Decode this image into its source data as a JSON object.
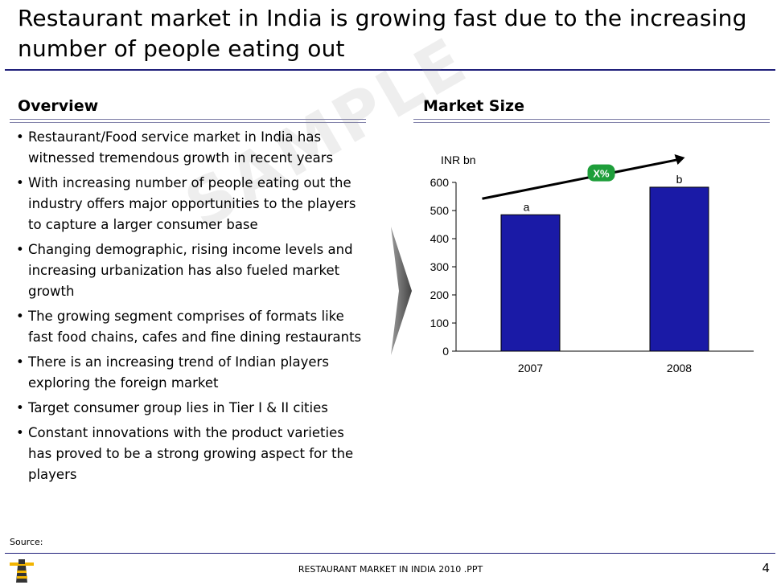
{
  "slide": {
    "title": "Restaurant market in India is growing fast due to the increasing number of people eating out",
    "overview_heading": "Overview",
    "market_heading": "Market Size",
    "bullets": [
      "Restaurant/Food service market in India has witnessed tremendous growth in recent years",
      "With increasing number of people eating out the industry offers major opportunities to the players to capture a larger consumer base",
      "Changing demographic, rising income levels and increasing urbanization has also fueled market growth",
      "The growing segment comprises of formats like fast food chains, cafes and fine dining restaurants",
      "There is an increasing trend of Indian players exploring the foreign market",
      "Target consumer group lies in Tier I & II cities",
      "Constant innovations with the product varieties has proved to be a strong growing aspect for the players"
    ],
    "bullet_symbol": "•",
    "watermark": "SAMPLE",
    "source": "Source:",
    "footer": "RESTAURANT MARKET IN INDIA 2010 .PPT",
    "page_number": "4"
  },
  "colors": {
    "bar_fill": "#1a1aa6",
    "growth_badge": "#1e9e3a",
    "rule": "#1f1f7a"
  },
  "chart_data": {
    "type": "bar",
    "categories": [
      "2007",
      "2008"
    ],
    "values": [
      485,
      583
    ],
    "data_labels": [
      "a",
      "b"
    ],
    "unit_label": "INR bn",
    "ylim": [
      0,
      600
    ],
    "yticks": [
      0,
      100,
      200,
      300,
      400,
      500,
      600
    ],
    "growth_label": "X%",
    "title": "",
    "xlabel": "",
    "ylabel": ""
  }
}
